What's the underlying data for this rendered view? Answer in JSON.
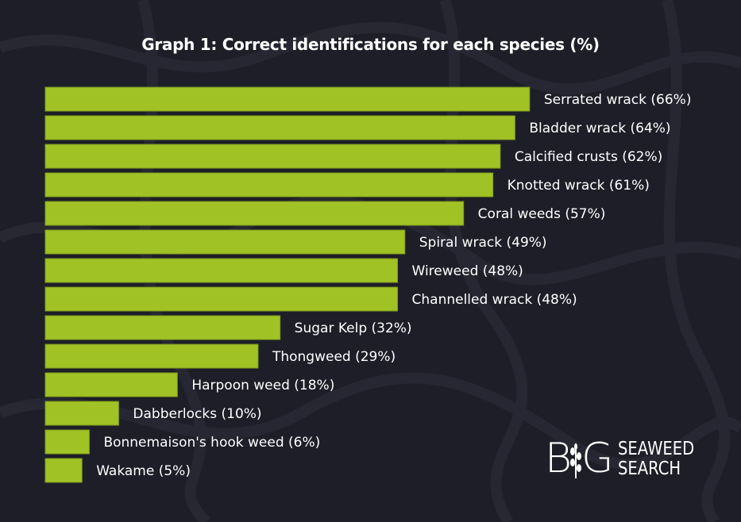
{
  "chart_data": {
    "type": "bar",
    "orientation": "horizontal",
    "title": "Graph 1: Correct identifications for each species (%)",
    "categories": [
      "Serrated wrack",
      "Bladder wrack",
      "Calcified crusts",
      "Knotted wrack",
      "Coral weeds",
      "Spiral wrack",
      "Wireweed",
      "Channelled wrack",
      "Sugar Kelp",
      "Thongweed",
      "Harpoon weed",
      "Dabberlocks",
      "Bonnemaison's hook weed",
      "Wakame"
    ],
    "values": [
      66,
      64,
      62,
      61,
      57,
      49,
      48,
      48,
      32,
      29,
      18,
      10,
      6,
      5
    ],
    "data_labels": [
      "Serrated wrack (66%)",
      "Bladder wrack (64%)",
      "Calcified crusts (62%)",
      "Knotted wrack (61%)",
      "Coral weeds (57%)",
      "Spiral wrack (49%)",
      "Wireweed (48%)",
      "Channelled wrack (48%)",
      "Sugar Kelp (32%)",
      "Thongweed (29%)",
      "Harpoon weed (18%)",
      "Dabberlocks (10%)",
      "Bonnemaison's hook weed (6%)",
      "Wakame (5%)"
    ],
    "xlabel": "",
    "ylabel": "",
    "grid": false,
    "bar_color": "#a0c225",
    "background_color": "#1e1e28"
  },
  "logo": {
    "big": "BIG",
    "line1": "SEAWEED",
    "line2": "SEARCH"
  }
}
